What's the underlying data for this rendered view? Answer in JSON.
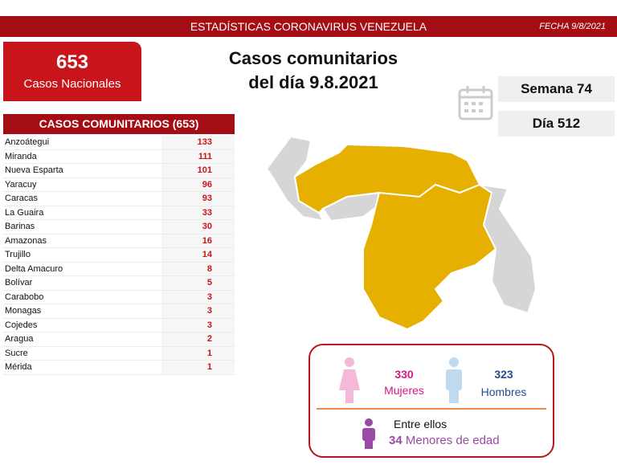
{
  "header": {
    "title": "ESTADÍSTICAS CORONAVIRUS VENEZUELA",
    "date": "FECHA 9/8/2021"
  },
  "national": {
    "value": 653,
    "label": "Casos Nacionales"
  },
  "headline": {
    "line1": "Casos comunitarios",
    "line2": "del día 9.8.2021"
  },
  "week": "Semana 74",
  "day": "Día 512",
  "table": {
    "title": "CASOS COMUNITARIOS (653)",
    "rows": [
      [
        "Anzoátegui",
        133
      ],
      [
        "Miranda",
        111
      ],
      [
        "Nueva Esparta",
        101
      ],
      [
        "Yaracuy",
        96
      ],
      [
        "Caracas",
        93
      ],
      [
        "La Guaira",
        33
      ],
      [
        "Barinas",
        30
      ],
      [
        "Amazonas",
        16
      ],
      [
        "Trujillo",
        14
      ],
      [
        "Delta Amacuro",
        8
      ],
      [
        "Bolívar",
        5
      ],
      [
        "Carabobo",
        3
      ],
      [
        "Monagas",
        3
      ],
      [
        "Cojedes",
        3
      ],
      [
        "Aragua",
        2
      ],
      [
        "Sucre",
        1
      ],
      [
        "Mérida",
        1
      ]
    ]
  },
  "gender": {
    "women": {
      "value": 330,
      "label": "Mujeres"
    },
    "men": {
      "value": 323,
      "label": "Hombres"
    },
    "minors_intro": "Entre ellos",
    "minors": {
      "value": 34,
      "label": "Menores de edad"
    }
  }
}
